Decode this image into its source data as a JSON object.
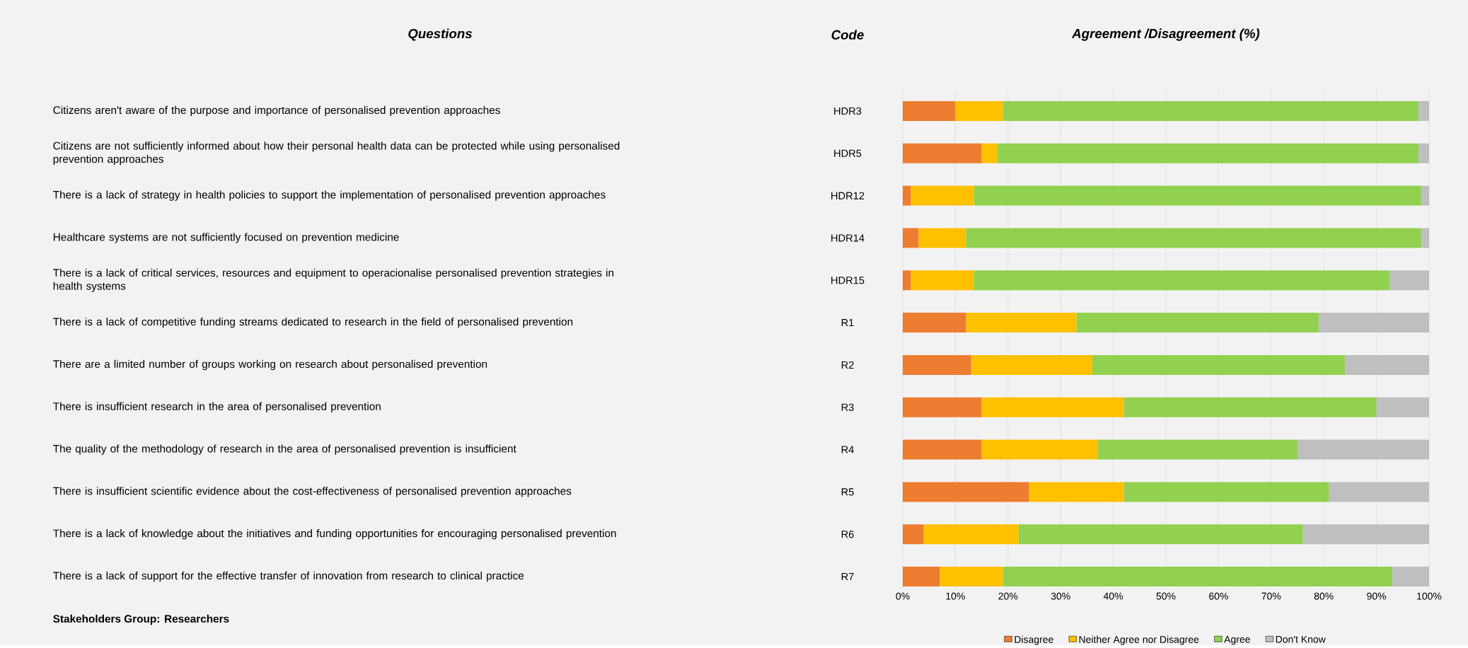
{
  "chart_data": {
    "type": "bar",
    "orientation": "horizontal",
    "stacked": true,
    "title": "Agreement /Disagreement (%)",
    "categories": [
      "HDR3",
      "HDR5",
      "HDR12",
      "HDR14",
      "HDR15",
      "R1",
      "R2",
      "R3",
      "R4",
      "R5",
      "R6",
      "R7"
    ],
    "series": [
      {
        "name": "Disagree",
        "color": "#ed7d31",
        "values": [
          10,
          15,
          1.5,
          3,
          1.5,
          12,
          13,
          15,
          15,
          24,
          4,
          7
        ]
      },
      {
        "name": "Neither Agree nor Disagree",
        "color": "#ffc000",
        "values": [
          9,
          3,
          12,
          9,
          12,
          21,
          23,
          27,
          22,
          18,
          18,
          12
        ]
      },
      {
        "name": "Agree",
        "color": "#92d050",
        "values": [
          79,
          80,
          85,
          86.5,
          79,
          46,
          48,
          48,
          38,
          39,
          54,
          74
        ]
      },
      {
        "name": "Don't Know",
        "color": "#bfbfbf",
        "values": [
          2,
          2,
          1.5,
          1.5,
          7.5,
          21,
          16,
          10,
          25,
          19,
          24,
          7
        ]
      }
    ],
    "xlim": [
      0,
      100
    ],
    "xticks": [
      {
        "value": 0,
        "label": "0%"
      },
      {
        "value": 10,
        "label": "10%"
      },
      {
        "value": 20,
        "label": "20%"
      },
      {
        "value": 30,
        "label": "30%"
      },
      {
        "value": 40,
        "label": "40%"
      },
      {
        "value": 50,
        "label": "50%"
      },
      {
        "value": 60,
        "label": "60%"
      },
      {
        "value": 70,
        "label": "70%"
      },
      {
        "value": 80,
        "label": "80%"
      },
      {
        "value": 90,
        "label": "90%"
      },
      {
        "value": 100,
        "label": "100%"
      }
    ],
    "grid": "x",
    "legend": "bottom",
    "annotations": [
      "Questions",
      "Code",
      "Citizens aren't aware of the purpose and importance of personalised prevention approaches",
      "Citizens are not sufficiently informed about how their personal health data can be protected while using personalised prevention approaches",
      "There is a lack of strategy in health policies to support the implementation of personalised prevention approaches",
      "Healthcare systems are not sufficiently focused on prevention medicine",
      "There is a lack of critical services, resources and equipment to operacionalise personalised prevention strategies in health systems",
      "There is a lack of competitive funding streams dedicated to research in the field of personalised prevention",
      "There are a limited number of groups working on research about personalised prevention",
      "There is insufficient research in the area of personalised prevention",
      "The quality of the methodology of research in the area of personalised prevention is insufficient",
      "There is insufficient scientific evidence about the cost-effectiveness of personalised prevention approaches",
      "There is a lack of knowledge about the initiatives and funding opportunities for encouraging personalised prevention",
      "There is a lack of support for the effective transfer of innovation from research to clinical practice",
      "Stakeholders Group: Researchers"
    ]
  }
}
